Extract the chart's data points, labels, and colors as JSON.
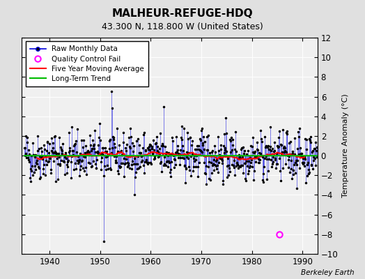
{
  "title": "MALHEUR-REFUGE-HDQ",
  "subtitle": "43.300 N, 118.800 W (United States)",
  "ylabel": "Temperature Anomaly (°C)",
  "xlim": [
    1934.5,
    1993.0
  ],
  "ylim": [
    -10,
    12
  ],
  "yticks": [
    -10,
    -8,
    -6,
    -4,
    -2,
    0,
    2,
    4,
    6,
    8,
    10,
    12
  ],
  "xticks": [
    1940,
    1950,
    1960,
    1970,
    1980,
    1990
  ],
  "bg_color": "#e0e0e0",
  "plot_bg_color": "#f0f0f0",
  "grid_color": "#ffffff",
  "raw_line_color": "#0000dd",
  "raw_marker_color": "#000000",
  "moving_avg_color": "#ff0000",
  "trend_color": "#00bb00",
  "qc_fail_color": "#ff00ff",
  "watermark": "Berkeley Earth",
  "seed": 42,
  "start_year": 1935,
  "end_year": 1993,
  "qc_fail_x": 1985.5,
  "qc_fail_y": -8.0
}
